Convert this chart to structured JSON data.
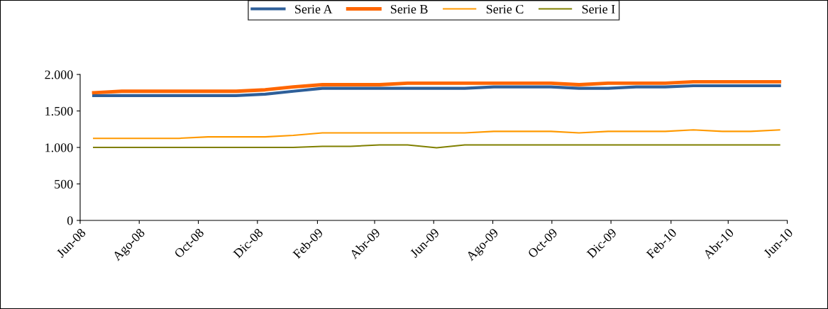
{
  "chart_data": {
    "type": "line",
    "x": [
      "2008-06-15",
      "2008-07-14",
      "2008-08-13",
      "2008-09-11",
      "2008-10-11",
      "2008-11-09",
      "2008-12-09",
      "2009-01-07",
      "2009-02-06",
      "2009-03-07",
      "2009-04-06",
      "2009-05-05",
      "2009-06-04",
      "2009-07-03",
      "2009-08-02",
      "2009-08-31",
      "2009-09-30",
      "2009-10-29",
      "2009-11-28",
      "2009-12-27",
      "2010-01-26",
      "2010-02-24",
      "2010-03-26",
      "2010-04-24",
      "2010-05-24"
    ],
    "series": [
      {
        "name": "Serie A",
        "color": "#2e5f99",
        "values": [
          1710,
          1710,
          1710,
          1710,
          1710,
          1710,
          1730,
          1770,
          1810,
          1810,
          1810,
          1810,
          1810,
          1810,
          1830,
          1830,
          1830,
          1810,
          1810,
          1830,
          1830,
          1845,
          1845,
          1845,
          1845
        ]
      },
      {
        "name": "Serie B",
        "color": "#ff6600",
        "values": [
          1750,
          1770,
          1770,
          1770,
          1770,
          1770,
          1790,
          1830,
          1860,
          1860,
          1860,
          1880,
          1880,
          1880,
          1880,
          1880,
          1880,
          1860,
          1880,
          1880,
          1880,
          1900,
          1900,
          1900,
          1900
        ]
      },
      {
        "name": "Serie C",
        "color": "#ff9900",
        "values": [
          1125,
          1125,
          1125,
          1125,
          1145,
          1145,
          1145,
          1165,
          1200,
          1200,
          1200,
          1200,
          1200,
          1200,
          1220,
          1220,
          1220,
          1200,
          1220,
          1220,
          1220,
          1240,
          1220,
          1220,
          1240
        ]
      },
      {
        "name": "Serie I",
        "color": "#808000",
        "values": [
          1000,
          1000,
          1000,
          1000,
          1000,
          1000,
          1000,
          1000,
          1015,
          1015,
          1035,
          1035,
          995,
          1035,
          1035,
          1035,
          1035,
          1035,
          1035,
          1035,
          1035,
          1035,
          1035,
          1035,
          1035
        ]
      }
    ],
    "xlim": [
      "2008-06-01",
      "2010-06-01"
    ],
    "xticks": [
      {
        "value": "2008-06-01",
        "label": "Jun-08"
      },
      {
        "value": "2008-08-01",
        "label": "Ago-08"
      },
      {
        "value": "2008-10-01",
        "label": "Oct-08"
      },
      {
        "value": "2008-12-01",
        "label": "Dic-08"
      },
      {
        "value": "2009-02-01",
        "label": "Feb-09"
      },
      {
        "value": "2009-04-01",
        "label": "Abr-09"
      },
      {
        "value": "2009-06-01",
        "label": "Jun-09"
      },
      {
        "value": "2009-08-01",
        "label": "Ago-09"
      },
      {
        "value": "2009-10-01",
        "label": "Oct-09"
      },
      {
        "value": "2009-12-01",
        "label": "Dic-09"
      },
      {
        "value": "2010-02-01",
        "label": "Feb-10"
      },
      {
        "value": "2010-04-01",
        "label": "Abr-10"
      },
      {
        "value": "2010-06-01",
        "label": "Jun-10"
      }
    ],
    "ylim": [
      0,
      2000
    ],
    "yticks": [
      {
        "value": 0,
        "label": "0"
      },
      {
        "value": 500,
        "label": "500"
      },
      {
        "value": 1000,
        "label": "1.000"
      },
      {
        "value": 1500,
        "label": "1.500"
      },
      {
        "value": 2000,
        "label": "2.000"
      }
    ],
    "grid": false,
    "legend": "top",
    "marker": "none",
    "line_style": "solid"
  }
}
